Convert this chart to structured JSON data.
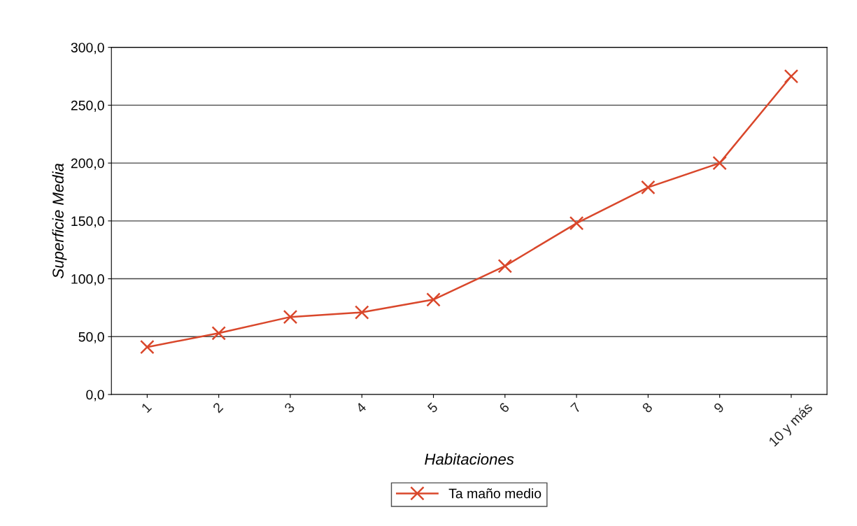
{
  "chart_data": {
    "type": "line",
    "xlabel": "Habitaciones",
    "ylabel": "Superficie Media",
    "categories": [
      "1",
      "2",
      "3",
      "4",
      "5",
      "6",
      "7",
      "8",
      "9",
      "10 y más"
    ],
    "series": [
      {
        "name": "Ta maño medio",
        "color": "#d9472b",
        "values": [
          41,
          53,
          67,
          71,
          82,
          111,
          148,
          179,
          200,
          275
        ]
      }
    ],
    "ylim": [
      0,
      300
    ],
    "yticks": [
      {
        "value": 0,
        "label": "0,0"
      },
      {
        "value": 50,
        "label": "50,0"
      },
      {
        "value": 100,
        "label": "100,0"
      },
      {
        "value": 150,
        "label": "150,0"
      },
      {
        "value": 200,
        "label": "200,0"
      },
      {
        "value": 250,
        "label": "250,0"
      },
      {
        "value": 300,
        "label": "300,0"
      }
    ],
    "grid": "y",
    "legend": "bottom",
    "marker": "cross",
    "line_style": "solid"
  }
}
